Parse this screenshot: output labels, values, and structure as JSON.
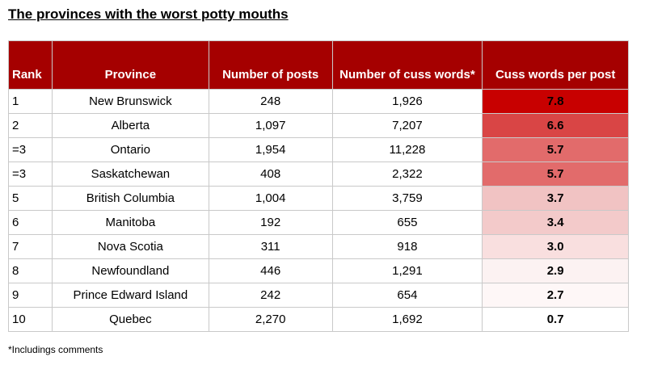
{
  "title": "The provinces with the worst potty mouths",
  "table": {
    "headers": [
      "Rank",
      "Province",
      "Number of posts",
      "Number of cuss words*",
      "Cuss words per post"
    ],
    "rows": [
      [
        "1",
        "New Brunswick",
        "248",
        "1,926",
        "7.8"
      ],
      [
        "2",
        "Alberta",
        "1,097",
        "7,207",
        "6.6"
      ],
      [
        "=3",
        "Ontario",
        "1,954",
        "11,228",
        "5.7"
      ],
      [
        "=3",
        "Saskatchewan",
        "408",
        "2,322",
        "5.7"
      ],
      [
        "5",
        "British Columbia",
        "1,004",
        "3,759",
        "3.7"
      ],
      [
        "6",
        "Manitoba",
        "192",
        "655",
        "3.4"
      ],
      [
        "7",
        "Nova Scotia",
        "311",
        "918",
        "3.0"
      ],
      [
        "8",
        "Newfoundland",
        "446",
        "1,291",
        "2.9"
      ],
      [
        "9",
        "Prince Edward Island",
        "242",
        "654",
        "2.7"
      ],
      [
        "10",
        "Quebec",
        "2,270",
        "1,692",
        "0.7"
      ]
    ],
    "header_color": "#a50000",
    "heat_colors": [
      "#c80000",
      "#d94545",
      "#e26b6b",
      "#e26b6b",
      "#f1c3c3",
      "#f3caca",
      "#f9dfdf",
      "#fcf2f2",
      "#fef7f7",
      "#ffffff"
    ]
  },
  "footnote": "*Includings comments"
}
